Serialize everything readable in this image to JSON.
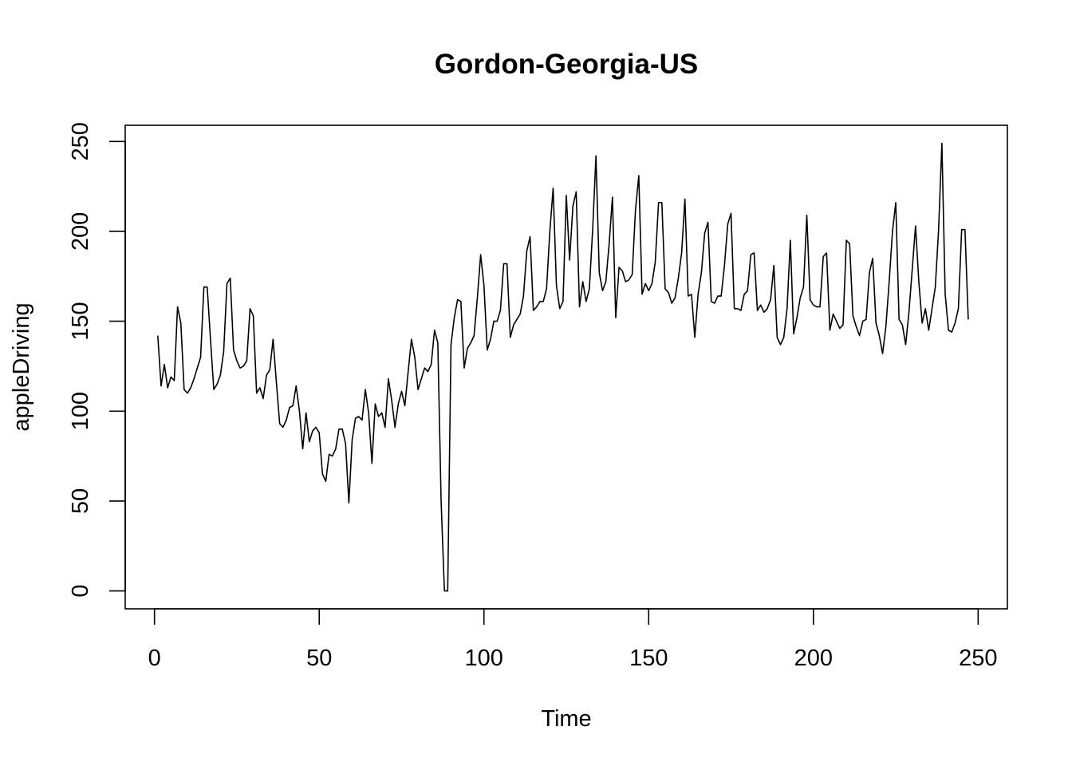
{
  "chart_data": {
    "type": "line",
    "title": "Gordon-Georgia-US",
    "xlabel": "Time",
    "ylabel": "appleDriving",
    "xlim": [
      -8.88,
      258.88
    ],
    "ylim": [
      -9.96,
      259.0
    ],
    "x_ticks": [
      0,
      50,
      100,
      150,
      200,
      250
    ],
    "y_ticks": [
      0,
      50,
      100,
      150,
      200,
      250
    ],
    "x_start": 1,
    "series": [
      {
        "values": [
          142,
          114,
          126,
          113,
          119,
          117,
          158,
          149,
          112,
          110,
          113,
          118,
          124,
          130,
          169,
          169,
          140,
          112,
          115,
          120,
          133,
          171,
          174,
          134,
          128,
          124,
          125,
          128,
          157,
          153,
          110,
          113,
          107,
          120,
          123,
          140,
          116,
          93,
          91,
          95,
          102,
          103,
          114,
          100,
          79,
          99,
          83,
          89,
          91,
          88,
          65,
          61,
          76,
          75,
          79,
          90,
          90,
          82,
          49,
          84,
          96,
          97,
          95,
          112,
          99,
          71,
          104,
          97,
          99,
          91,
          118,
          106,
          91,
          104,
          111,
          103,
          122,
          140,
          130,
          112,
          118,
          124,
          122,
          126,
          145,
          138,
          50,
          0,
          0,
          137,
          152,
          162,
          161,
          124,
          135,
          138,
          142,
          163,
          187,
          170,
          134,
          140,
          150,
          150,
          156,
          182,
          182,
          141,
          148,
          151,
          154,
          164,
          189,
          197,
          156,
          158,
          161,
          161,
          168,
          200,
          224,
          170,
          157,
          161,
          220,
          184,
          214,
          222,
          158,
          172,
          161,
          168,
          201,
          242,
          177,
          167,
          172,
          193,
          219,
          152,
          180,
          178,
          172,
          173,
          176,
          212,
          231,
          165,
          171,
          167,
          171,
          183,
          216,
          216,
          168,
          166,
          160,
          163,
          174,
          188,
          218,
          164,
          165,
          141,
          165,
          177,
          199,
          205,
          161,
          160,
          164,
          164,
          181,
          204,
          210,
          157,
          157,
          156,
          165,
          167,
          187,
          188,
          156,
          159,
          155,
          157,
          162,
          181,
          141,
          137,
          141,
          157,
          195,
          143,
          152,
          163,
          169,
          209,
          162,
          159,
          158,
          158,
          186,
          188,
          145,
          154,
          150,
          146,
          148,
          195,
          193,
          153,
          147,
          142,
          150,
          151,
          177,
          185,
          149,
          142,
          132,
          147,
          172,
          200,
          216,
          151,
          148,
          137,
          155,
          179,
          203,
          172,
          149,
          157,
          145,
          157,
          169,
          201,
          249,
          165,
          145,
          144,
          149,
          157,
          201,
          201,
          151
        ]
      }
    ]
  }
}
